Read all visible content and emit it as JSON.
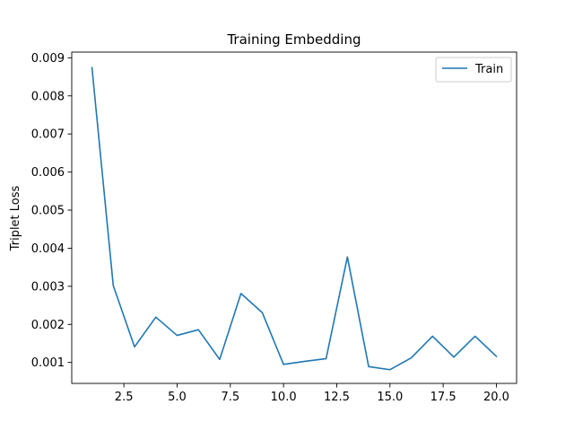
{
  "chart_data": {
    "type": "line",
    "title": "Training  Embedding",
    "xlabel": "",
    "ylabel": "Triplet Loss",
    "xlim": [
      0.05,
      20.95
    ],
    "ylim": [
      0.00045,
      0.00915
    ],
    "xticks": [
      2.5,
      5.0,
      7.5,
      10.0,
      12.5,
      15.0,
      17.5,
      20.0
    ],
    "xtick_labels": [
      "2.5",
      "5.0",
      "7.5",
      "10.0",
      "12.5",
      "15.0",
      "17.5",
      "20.0"
    ],
    "yticks": [
      0.001,
      0.002,
      0.003,
      0.004,
      0.005,
      0.006,
      0.007,
      0.008,
      0.009
    ],
    "ytick_labels": [
      "0.001",
      "0.002",
      "0.003",
      "0.004",
      "0.005",
      "0.006",
      "0.007",
      "0.008",
      "0.009"
    ],
    "grid": false,
    "legend_position": "top-right",
    "series": [
      {
        "name": "Train",
        "color": "#1f77b4",
        "x": [
          1,
          2,
          3,
          4,
          5,
          6,
          7,
          8,
          9,
          10,
          11,
          12,
          13,
          14,
          15,
          16,
          17,
          18,
          19,
          20
        ],
        "y": [
          0.00874,
          0.00302,
          0.00141,
          0.00219,
          0.00171,
          0.00186,
          0.00108,
          0.00281,
          0.00231,
          0.00095,
          0.00103,
          0.0011,
          0.00377,
          0.00089,
          0.00081,
          0.00112,
          0.00169,
          0.00114,
          0.00169,
          0.00116
        ]
      }
    ]
  }
}
